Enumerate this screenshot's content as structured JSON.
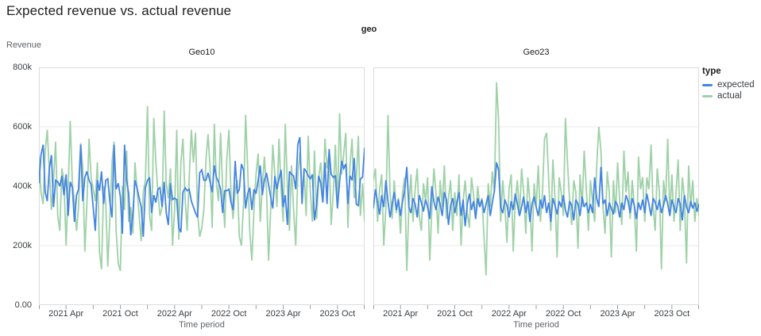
{
  "header": {
    "title": "Expected revenue vs. actual revenue"
  },
  "facets": {
    "field_label": "geo"
  },
  "axes": {
    "y_title": "Revenue",
    "x_title": "Time period"
  },
  "legend": {
    "title": "type",
    "entries": [
      {
        "label": "expected",
        "color": "#4484e4"
      },
      {
        "label": "actual",
        "color": "#9fd1a8"
      }
    ]
  },
  "style": {
    "grid_color": "#e8e8e8",
    "border_color": "#dadce0",
    "tick_color": "#9aa0a6",
    "expected_color": "#4484e4",
    "actual_color": "#9fd1a8"
  },
  "chart_data": [
    {
      "type": "line",
      "title": "Geo10",
      "xlabel": "Time period",
      "ylabel": "Revenue",
      "value_unit": "thousands",
      "ylim": [
        0,
        800
      ],
      "ytick_values": [
        0,
        200,
        400,
        600,
        800
      ],
      "ytick_labels": [
        "0.00",
        "200k",
        "400k",
        "600k",
        "800k"
      ],
      "x_domain": [
        "2021 Jan",
        "2024 Jan"
      ],
      "x_unit": "week",
      "x_months_total": 36,
      "minor_tick_every_months": 3,
      "xtick_months": [
        3,
        9,
        15,
        21,
        27,
        33
      ],
      "xticks": [
        "2021 Apr",
        "2021 Oct",
        "2022 Apr",
        "2022 Oct",
        "2023 Apr",
        "2023 Oct"
      ],
      "series": [
        {
          "name": "expected",
          "color": "#4484e4",
          "values": [
            410,
            505,
            540,
            380,
            350,
            460,
            505,
            330,
            420,
            415,
            400,
            435,
            370,
            440,
            300,
            415,
            395,
            280,
            370,
            390,
            540,
            350,
            430,
            450,
            420,
            405,
            330,
            250,
            420,
            385,
            450,
            340,
            420,
            425,
            345,
            295,
            540,
            390,
            410,
            365,
            240,
            540,
            420,
            375,
            235,
            310,
            420,
            395,
            360,
            330,
            230,
            395,
            420,
            430,
            310,
            370,
            345,
            390,
            395,
            330,
            415,
            310,
            270,
            410,
            355,
            360,
            355,
            260,
            245,
            380,
            395,
            385,
            390,
            350,
            330,
            310,
            295,
            445,
            455,
            420,
            420,
            445,
            415,
            380,
            470,
            430,
            415,
            390,
            310,
            385,
            385,
            390,
            345,
            320,
            485,
            375,
            390,
            475,
            455,
            325,
            375,
            395,
            320,
            390,
            375,
            420,
            470,
            370,
            420,
            445,
            405,
            365,
            325,
            435,
            390,
            425,
            455,
            330,
            370,
            270,
            450,
            440,
            435,
            390,
            540,
            565,
            340,
            460,
            450,
            435,
            425,
            440,
            285,
            340,
            435,
            410,
            345,
            480,
            340,
            525,
            440,
            430,
            435,
            325,
            415,
            485,
            460,
            475,
            340,
            435,
            420,
            495,
            340,
            335,
            425,
            430,
            530
          ]
        },
        {
          "name": "actual",
          "color": "#9fd1a8",
          "values": [
            500,
            380,
            340,
            520,
            590,
            450,
            320,
            420,
            550,
            300,
            250,
            460,
            420,
            200,
            390,
            620,
            410,
            350,
            250,
            330,
            545,
            460,
            180,
            340,
            560,
            430,
            390,
            350,
            480,
            180,
            120,
            400,
            350,
            130,
            300,
            480,
            550,
            250,
            140,
            115,
            400,
            320,
            520,
            280,
            330,
            240,
            480,
            390,
            300,
            215,
            380,
            420,
            670,
            300,
            250,
            630,
            480,
            380,
            300,
            330,
            655,
            410,
            360,
            460,
            200,
            320,
            590,
            220,
            480,
            560,
            360,
            250,
            430,
            590,
            480,
            580,
            310,
            230,
            260,
            320,
            490,
            575,
            460,
            260,
            610,
            410,
            350,
            580,
            390,
            260,
            490,
            590,
            370,
            290,
            390,
            420,
            230,
            200,
            340,
            640,
            460,
            250,
            150,
            320,
            440,
            510,
            280,
            400,
            500,
            390,
            150,
            320,
            540,
            440,
            330,
            560,
            390,
            280,
            610,
            400,
            250,
            470,
            320,
            200,
            440,
            515,
            380,
            450,
            300,
            570,
            380,
            280,
            520,
            290,
            430,
            480,
            350,
            560,
            460,
            510,
            270,
            380,
            540,
            330,
            645,
            440,
            510,
            580,
            260,
            470,
            560,
            360,
            420,
            570,
            300,
            410,
            280
          ]
        }
      ]
    },
    {
      "type": "line",
      "title": "Geo23",
      "xlabel": "Time period",
      "ylabel": "Revenue",
      "value_unit": "thousands",
      "ylim": [
        0,
        800
      ],
      "ytick_values": [
        0,
        200,
        400,
        600,
        800
      ],
      "ytick_labels": [
        "0.00",
        "200k",
        "400k",
        "600k",
        "800k"
      ],
      "x_domain": [
        "2021 Jan",
        "2024 Jan"
      ],
      "x_unit": "week",
      "x_months_total": 36,
      "minor_tick_every_months": 3,
      "xtick_months": [
        3,
        9,
        15,
        21,
        27,
        33
      ],
      "xticks": [
        "2021 Apr",
        "2021 Oct",
        "2022 Apr",
        "2022 Oct",
        "2023 Apr",
        "2023 Oct"
      ],
      "series": [
        {
          "name": "expected",
          "color": "#4484e4",
          "values": [
            325,
            390,
            345,
            305,
            370,
            330,
            420,
            350,
            295,
            340,
            380,
            320,
            355,
            300,
            350,
            385,
            465,
            330,
            310,
            360,
            340,
            295,
            370,
            345,
            315,
            355,
            330,
            290,
            400,
            350,
            320,
            365,
            340,
            300,
            380,
            355,
            270,
            335,
            360,
            310,
            345,
            380,
            300,
            355,
            265,
            340,
            375,
            320,
            350,
            290,
            360,
            330,
            355,
            310,
            340,
            370,
            300,
            345,
            385,
            480,
            455,
            330,
            310,
            355,
            335,
            295,
            350,
            320,
            375,
            340,
            300,
            330,
            365,
            310,
            350,
            280,
            340,
            365,
            330,
            300,
            355,
            325,
            370,
            310,
            345,
            280,
            360,
            335,
            305,
            350,
            330,
            370,
            320,
            295,
            350,
            335,
            285,
            355,
            340,
            300,
            365,
            330,
            345,
            310,
            340,
            310,
            430,
            360,
            330,
            465,
            340,
            355,
            300,
            345,
            325,
            305,
            350,
            335,
            295,
            345,
            320,
            370,
            350,
            310,
            360,
            335,
            290,
            345,
            320,
            355,
            310,
            375,
            340,
            300,
            360,
            345,
            320,
            355,
            310,
            335,
            370,
            340,
            300,
            355,
            330,
            310,
            360,
            340,
            285,
            370,
            330,
            310,
            350,
            325,
            345,
            315,
            340
          ]
        },
        {
          "name": "actual",
          "color": "#9fd1a8",
          "values": [
            420,
            460,
            280,
            390,
            440,
            200,
            330,
            640,
            380,
            290,
            420,
            310,
            360,
            240,
            380,
            430,
            115,
            330,
            440,
            280,
            390,
            460,
            300,
            250,
            410,
            350,
            430,
            150,
            320,
            460,
            380,
            240,
            420,
            330,
            470,
            290,
            360,
            420,
            250,
            380,
            300,
            440,
            200,
            350,
            420,
            310,
            260,
            430,
            370,
            290,
            400,
            330,
            360,
            230,
            100,
            410,
            330,
            450,
            380,
            750,
            620,
            280,
            420,
            330,
            210,
            390,
            440,
            180,
            350,
            420,
            300,
            460,
            380,
            240,
            430,
            350,
            180,
            410,
            330,
            470,
            280,
            380,
            560,
            580,
            420,
            250,
            490,
            360,
            160,
            430,
            380,
            300,
            630,
            480,
            350,
            270,
            420,
            380,
            190,
            440,
            330,
            520,
            390,
            250,
            420,
            350,
            280,
            470,
            600,
            520,
            330,
            240,
            450,
            380,
            160,
            420,
            310,
            480,
            350,
            270,
            520,
            380,
            450,
            290,
            420,
            330,
            180,
            500,
            390,
            430,
            280,
            430,
            390,
            540,
            330,
            250,
            460,
            380,
            120,
            420,
            350,
            560,
            300,
            440,
            280,
            380,
            490,
            250,
            430,
            360,
            140,
            470,
            330,
            420,
            280,
            360,
            300
          ]
        }
      ]
    }
  ]
}
